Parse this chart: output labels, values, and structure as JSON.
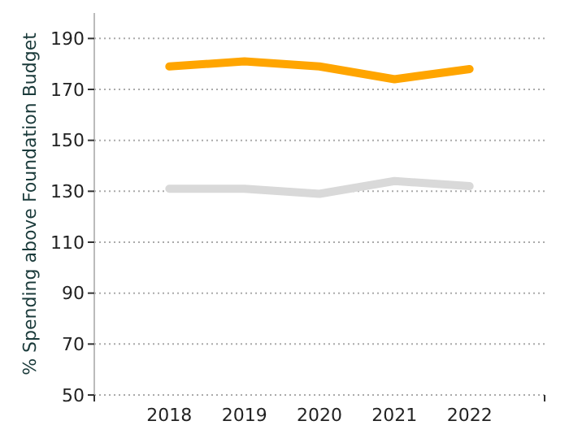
{
  "chart_data": {
    "type": "line",
    "ylabel": "% Spending above Foundation Budget",
    "x": [
      2018,
      2019,
      2020,
      2021,
      2022
    ],
    "series": [
      {
        "color": "#ffa500",
        "values": [
          179,
          181,
          179,
          174,
          178
        ]
      },
      {
        "color": "#d9d9d9",
        "values": [
          131,
          131,
          129,
          134,
          132
        ]
      }
    ],
    "xlim": [
      2017,
      2023
    ],
    "xticks": [
      {
        "value": 2017,
        "label": null
      },
      2018,
      2019,
      2020,
      2021,
      2022,
      {
        "value": 2023,
        "label": null
      }
    ],
    "ylim": [
      50,
      200
    ],
    "yticks": [
      50,
      70,
      90,
      110,
      130,
      150,
      170,
      190
    ],
    "grid": "y",
    "marker": "none",
    "line_style": "solid"
  }
}
